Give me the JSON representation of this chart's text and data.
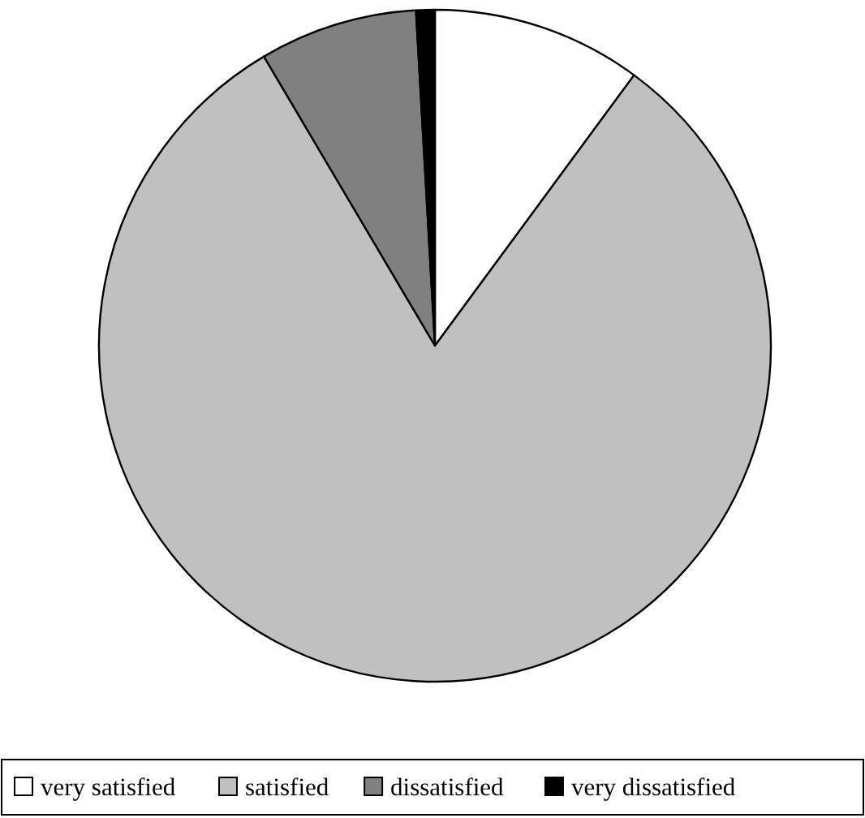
{
  "chart_data": {
    "type": "pie",
    "categories": [
      "very satisfied",
      "satisfied",
      "dissatisfied",
      "very dissatisfied"
    ],
    "values": [
      10.1,
      81.4,
      7.6,
      0.9
    ],
    "colors": [
      "#ffffff",
      "#c0c0c0",
      "#808080",
      "#000000"
    ],
    "legend": "bottom"
  }
}
